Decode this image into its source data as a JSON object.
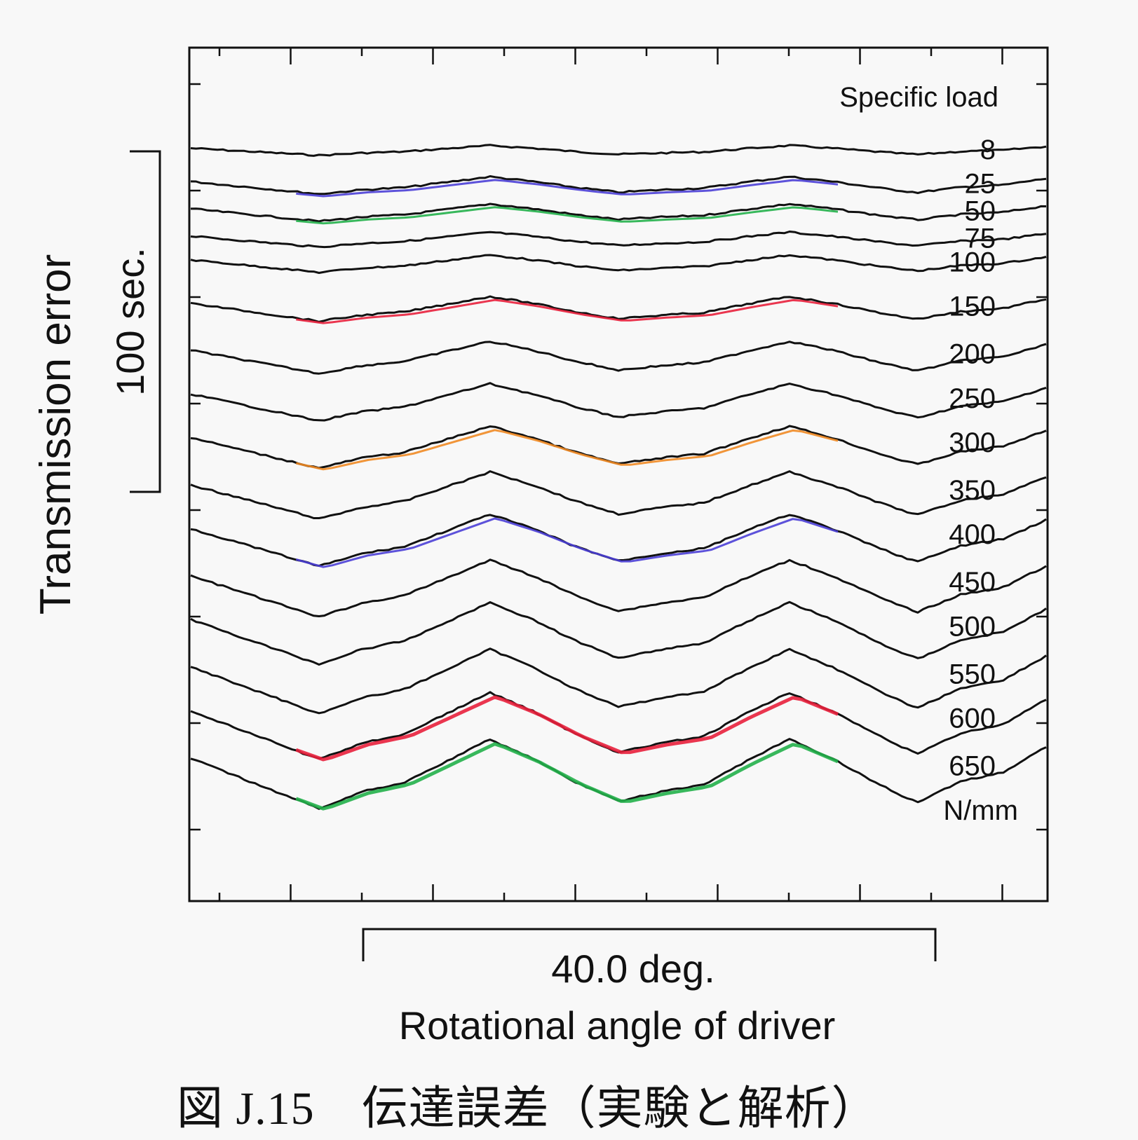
{
  "caption": "図 J.15　伝達誤差（実験と解析）",
  "chart_data": {
    "type": "line",
    "title": "",
    "ylabel": "Transmission error",
    "xlabel": "Rotational angle of driver",
    "y_scale_bar": {
      "label": "100 sec.",
      "value_sec": 100
    },
    "x_scale_bar": {
      "label": "40.0 deg.",
      "value_deg": 40.0
    },
    "legend_title": "Specific load",
    "legend_unit": "N/mm",
    "grid": false,
    "x_range_deg": [
      0,
      60
    ],
    "description": "Stacked transmission error curves (experiment, black) with analytical results (colored) overlaid on selected loads",
    "colors": {
      "experiment": "#111111",
      "blue": "#4b3fd6",
      "green": "#22b04a",
      "red": "#e8203c",
      "orange": "#f08a24"
    },
    "x_deg": [
      0,
      3,
      6,
      9,
      12,
      15,
      18,
      21,
      24,
      27,
      30,
      33,
      36,
      39,
      42,
      45,
      48,
      51,
      54,
      57,
      60
    ],
    "series": [
      {
        "load": "8",
        "offset_sec": 0,
        "amplitude_sec": 4,
        "analysis": null
      },
      {
        "load": "25",
        "offset_sec": 10,
        "amplitude_sec": 7,
        "analysis": "blue"
      },
      {
        "load": "50",
        "offset_sec": 18,
        "amplitude_sec": 7,
        "analysis": "green"
      },
      {
        "load": "75",
        "offset_sec": 26,
        "amplitude_sec": 6,
        "analysis": null
      },
      {
        "load": "100",
        "offset_sec": 33,
        "amplitude_sec": 7,
        "analysis": null
      },
      {
        "load": "150",
        "offset_sec": 46,
        "amplitude_sec": 10,
        "analysis": "red"
      },
      {
        "load": "200",
        "offset_sec": 60,
        "amplitude_sec": 13,
        "analysis": null
      },
      {
        "load": "250",
        "offset_sec": 73,
        "amplitude_sec": 15,
        "analysis": null
      },
      {
        "load": "300",
        "offset_sec": 86,
        "amplitude_sec": 17,
        "analysis": "orange"
      },
      {
        "load": "350",
        "offset_sec": 100,
        "amplitude_sec": 19,
        "analysis": null
      },
      {
        "load": "400",
        "offset_sec": 113,
        "amplitude_sec": 21,
        "analysis": "blue"
      },
      {
        "load": "450",
        "offset_sec": 127,
        "amplitude_sec": 23,
        "analysis": null
      },
      {
        "load": "500",
        "offset_sec": 140,
        "amplitude_sec": 25,
        "analysis": null
      },
      {
        "load": "550",
        "offset_sec": 154,
        "amplitude_sec": 26,
        "analysis": null
      },
      {
        "load": "600",
        "offset_sec": 167,
        "amplitude_sec": 27,
        "analysis": "red"
      },
      {
        "load": "650",
        "offset_sec": 181,
        "amplitude_sec": 28,
        "analysis": "green"
      }
    ],
    "wave_shape": [
      0.15,
      -0.2,
      -0.55,
      -0.9,
      -0.55,
      -0.35,
      0.1,
      0.55,
      0.15,
      -0.35,
      -0.75,
      -0.55,
      -0.4,
      0.1,
      0.55,
      0.15,
      -0.35,
      -0.8,
      -0.45,
      -0.35,
      0.1
    ],
    "analysis_x_range_deg": [
      7,
      45
    ]
  }
}
